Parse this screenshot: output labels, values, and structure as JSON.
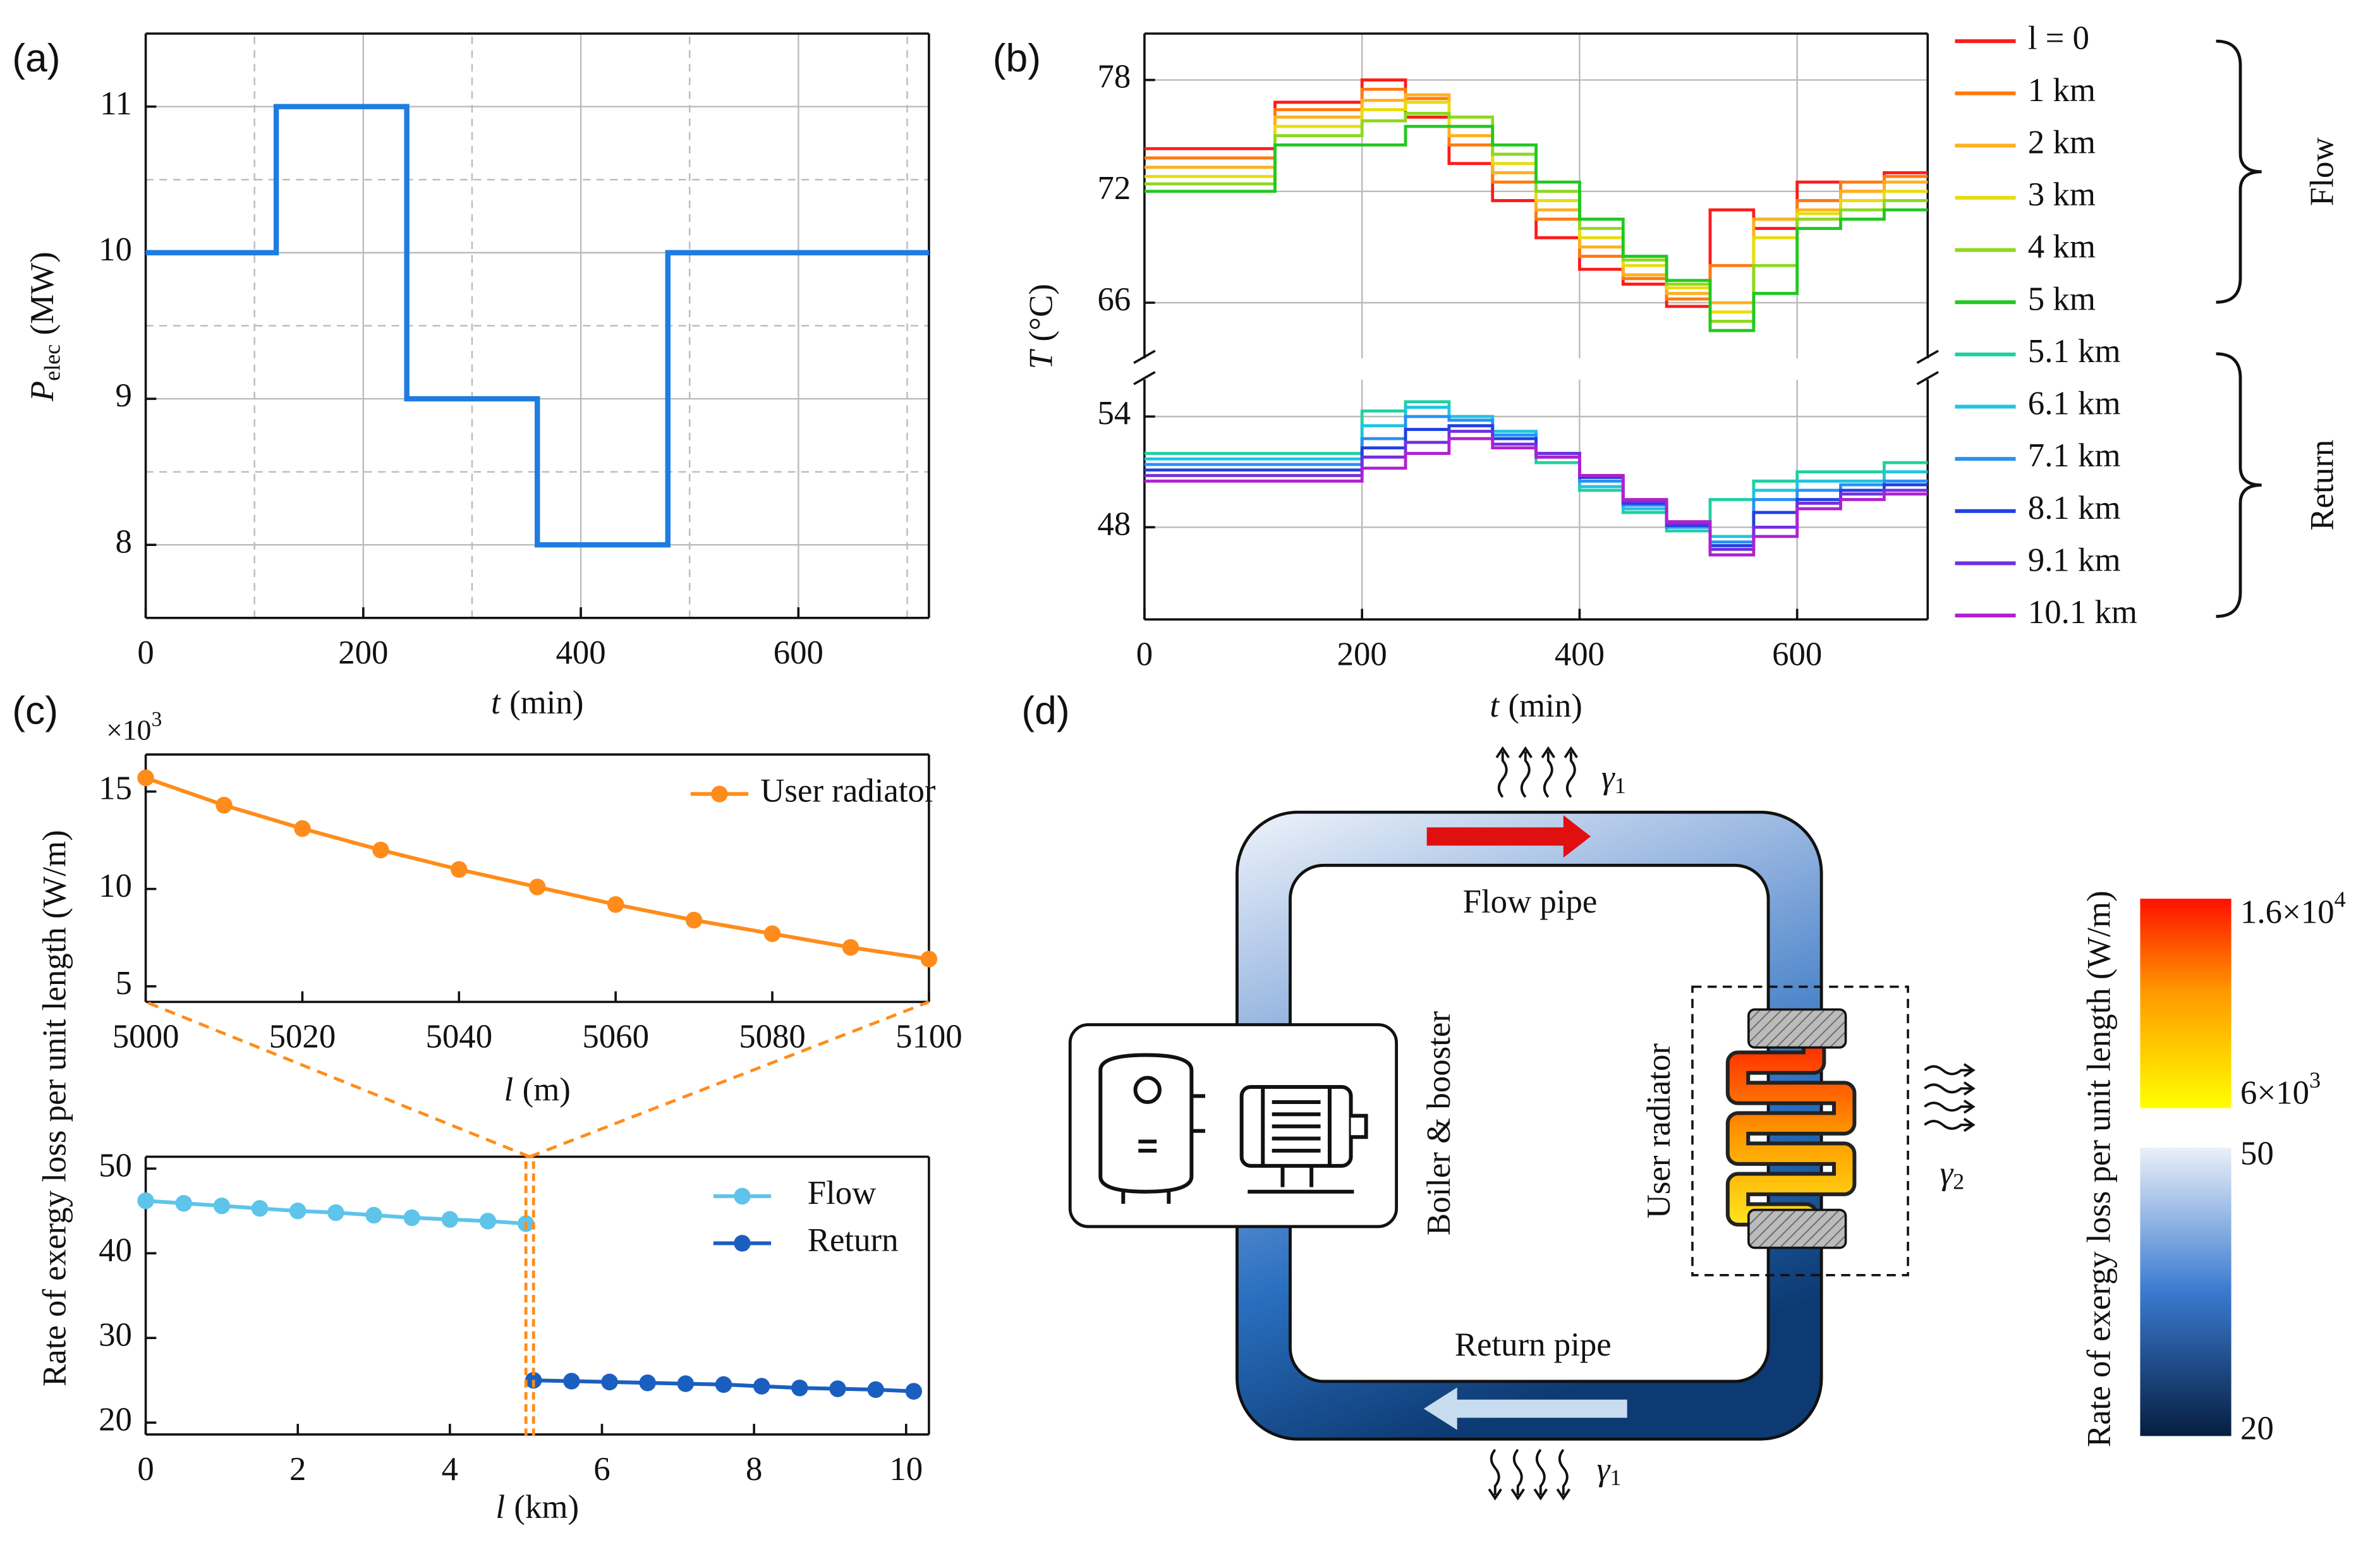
{
  "chart_data": [
    {
      "type": "step",
      "panel": "(a)",
      "x": [
        0,
        120,
        240,
        360,
        480,
        720
      ],
      "values": [
        10,
        11,
        9,
        8,
        10,
        10
      ],
      "color": "#1f7ce0",
      "xlim": [
        0,
        720
      ],
      "xticks": [
        0,
        200,
        400,
        600
      ],
      "minor_xticks": [
        100,
        300,
        500,
        700
      ],
      "ylim": [
        7.5,
        11.5
      ],
      "yticks": [
        8,
        9,
        10,
        11
      ],
      "minor_yticks": [
        8.5,
        9.5,
        10.5
      ],
      "xlabel": {
        "symbol": "t",
        "unit": "(min)"
      },
      "ylabel": {
        "symbol": "P",
        "subscript": "elec",
        "unit": "(MW)"
      },
      "grid": true
    },
    {
      "type": "step",
      "panel": "(b)",
      "x": [
        0,
        120,
        200,
        240,
        280,
        320,
        360,
        400,
        440,
        480,
        520,
        560,
        600,
        640,
        680,
        720
      ],
      "series": [
        {
          "name": "l = 0",
          "color": "#ff1a1a",
          "values": [
            74.3,
            76.8,
            78,
            76,
            73.5,
            71.5,
            69.5,
            67.8,
            67,
            65.8,
            71,
            70,
            72.5,
            72,
            73,
            73
          ]
        },
        {
          "name": "1 km",
          "color": "#ff7a10",
          "values": [
            73.8,
            76.4,
            77.5,
            77,
            74.5,
            72.5,
            70.5,
            68.5,
            67.3,
            66.2,
            68,
            70.5,
            71.5,
            72.5,
            72.8,
            72.8
          ]
        },
        {
          "name": "2 km",
          "color": "#ffb020",
          "values": [
            73.3,
            76,
            76.9,
            77.2,
            75,
            73,
            71,
            69,
            67.5,
            66.5,
            66,
            70.5,
            71,
            72,
            72.5,
            72.5
          ]
        },
        {
          "name": "3 km",
          "color": "#e8dc10",
          "values": [
            72.8,
            75.5,
            76.4,
            76.8,
            75.5,
            73.5,
            71.5,
            69.5,
            68,
            66.8,
            65.5,
            69.5,
            70.8,
            71.5,
            72,
            72
          ]
        },
        {
          "name": "4 km",
          "color": "#8ed820",
          "values": [
            72.4,
            75,
            75.8,
            76.2,
            76,
            74,
            72,
            70,
            68.3,
            67,
            65,
            68,
            70.5,
            71,
            71.5,
            71.5
          ]
        },
        {
          "name": "5 km",
          "color": "#20c820",
          "values": [
            72,
            74.5,
            74.5,
            75.5,
            75.5,
            74.5,
            72.5,
            70.5,
            68.5,
            67.2,
            64.5,
            66.5,
            70,
            70.5,
            71,
            71
          ]
        },
        {
          "name": "5.1 km",
          "color": "#20d0a0",
          "values": [
            52,
            52,
            54.3,
            54.8,
            54,
            53,
            51.5,
            50,
            48.8,
            47.8,
            49.5,
            50.5,
            51,
            51,
            51.5,
            51.5
          ]
        },
        {
          "name": "6.1 km",
          "color": "#20c4e0",
          "values": [
            51.7,
            51.7,
            53.5,
            54.5,
            54,
            53.2,
            51.8,
            50.2,
            49,
            48,
            47.5,
            50,
            50.5,
            50.5,
            51,
            51
          ]
        },
        {
          "name": "7.1 km",
          "color": "#2890f8",
          "values": [
            51.4,
            51.4,
            52.8,
            54,
            53.8,
            53,
            52,
            50.5,
            49.2,
            48,
            47.2,
            49.5,
            50,
            50.3,
            50.5,
            50.5
          ]
        },
        {
          "name": "8.1 km",
          "color": "#2040e0",
          "values": [
            51.1,
            51.1,
            52.3,
            53.3,
            53.5,
            52.8,
            52,
            50.7,
            49.3,
            48.1,
            47,
            48.8,
            49.5,
            50,
            50.3,
            50.3
          ]
        },
        {
          "name": "9.1 km",
          "color": "#7030e0",
          "values": [
            50.8,
            50.8,
            51.8,
            52.6,
            53.2,
            52.5,
            52,
            50.8,
            49.4,
            48.2,
            46.8,
            48,
            49.3,
            49.8,
            50,
            50
          ]
        },
        {
          "name": "10.1 km",
          "color": "#b020d0",
          "values": [
            50.5,
            50.5,
            51.2,
            52,
            52.8,
            52.3,
            51.8,
            50.8,
            49.5,
            48.3,
            46.5,
            47.5,
            49,
            49.5,
            49.8,
            49.8
          ]
        }
      ],
      "groups": [
        "Flow",
        "Return"
      ],
      "xlim": [
        0,
        720
      ],
      "xticks": [
        0,
        200,
        400,
        600
      ],
      "ylim_segments": [
        [
          43,
          56
        ],
        [
          63,
          80.5
        ]
      ],
      "yticks": [
        48,
        54,
        66,
        72,
        78
      ],
      "xlabel": {
        "symbol": "t",
        "unit": "(min)"
      },
      "ylabel": {
        "symbol": "T",
        "unit": "(°C)"
      },
      "grid": true,
      "legend": "right"
    },
    {
      "type": "line",
      "panel": "(c)",
      "series": [
        {
          "name": "User radiator",
          "color": "#ff8c1a",
          "x": [
            5000,
            5010,
            5020,
            5030,
            5040,
            5050,
            5060,
            5070,
            5080,
            5090,
            5100
          ],
          "values": [
            15.7,
            14.3,
            13.1,
            12,
            11,
            10.1,
            9.2,
            8.4,
            7.7,
            7,
            6.4
          ]
        }
      ],
      "xlim": [
        5000,
        5100
      ],
      "xticks": [
        5000,
        5020,
        5040,
        5060,
        5080,
        5100
      ],
      "ylim": [
        4.2,
        16.9
      ],
      "yticks": [
        5,
        10,
        15
      ],
      "y_multiplier": {
        "base": "×10",
        "exponent": "3"
      },
      "xlabel": {
        "symbol": "l",
        "unit": "(m)"
      },
      "legend": "upper right"
    },
    {
      "type": "line",
      "series": [
        {
          "name": "Flow",
          "color": "#5ec4ea",
          "x": [
            0,
            0.5,
            1,
            1.5,
            2,
            2.5,
            3,
            3.5,
            4,
            4.5,
            5
          ],
          "values": [
            46.2,
            45.9,
            45.6,
            45.3,
            45,
            44.8,
            44.5,
            44.2,
            44,
            43.8,
            43.5
          ]
        },
        {
          "name": "Return",
          "color": "#1a5fbf",
          "x": [
            5.1,
            5.6,
            6.1,
            6.6,
            7.1,
            7.6,
            8.1,
            8.6,
            9.1,
            9.6,
            10.1
          ],
          "values": [
            25,
            24.9,
            24.8,
            24.7,
            24.6,
            24.5,
            24.3,
            24.1,
            24,
            23.9,
            23.7
          ]
        }
      ],
      "xlim": [
        0,
        10.3
      ],
      "xticks": [
        0,
        2,
        4,
        6,
        8,
        10
      ],
      "ylim": [
        18.6,
        51.4
      ],
      "yticks": [
        20,
        30,
        40,
        50
      ],
      "xlabel": {
        "symbol": "l",
        "unit": "(km)"
      },
      "ylabel": "Rate of exergy loss per unit length (W/m)",
      "legend": "upper right"
    }
  ],
  "diagram": {
    "panel": "(d)",
    "gamma_top": {
      "symbol": "γ",
      "subscript": "1"
    },
    "flow_pipe": "Flow pipe",
    "boiler": "Boiler & booster",
    "radiator": "User radiator",
    "gamma_right": {
      "symbol": "γ",
      "subscript": "2"
    },
    "return_pipe": "Return pipe",
    "gamma_bottom": {
      "symbol": "γ",
      "subscript": "1"
    },
    "colorbar_warm": {
      "max": {
        "mantissa": "1.6×10",
        "exponent": "4"
      },
      "min": {
        "mantissa": "6×10",
        "exponent": "3"
      }
    },
    "colorbar_cool": {
      "max": "50",
      "min": "20"
    },
    "colorbar_label": "Rate of exergy loss per unit length (W/m)"
  }
}
